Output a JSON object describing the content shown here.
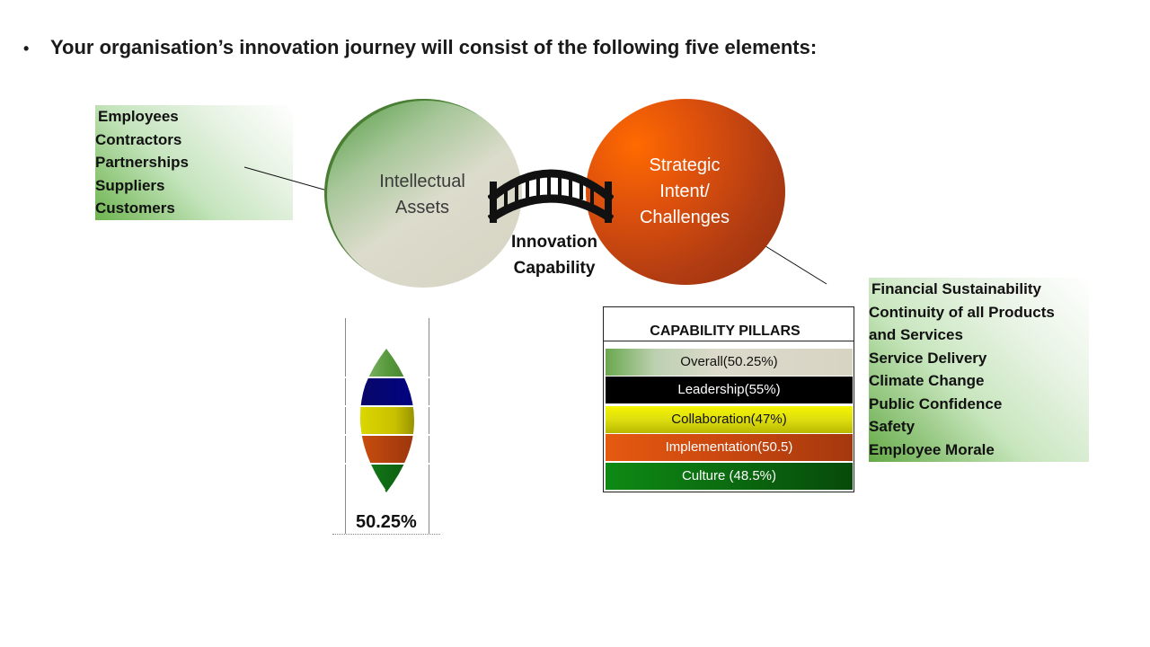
{
  "heading": {
    "bullet": "•",
    "text": "Your organisation’s innovation journey will consist of the following five elements:"
  },
  "left_list": [
    "Employees",
    "Contractors",
    "Partnerships",
    "Suppliers",
    "Customers"
  ],
  "right_list": [
    "Financial Sustainability",
    "Continuity of all Products",
    "and Services",
    "Service Delivery",
    "Climate Change",
    "Public Confidence",
    "Safety",
    "Employee Morale"
  ],
  "circles": {
    "left": {
      "line1": "Intellectual",
      "line2": "Assets"
    },
    "right": {
      "line1": "Strategic",
      "line2": "Intent/",
      "line3": "Challenges"
    }
  },
  "bridge": {
    "line1": "Innovation",
    "line2": "Capability"
  },
  "pillars": {
    "title": "CAPABILITY PILLARS",
    "items": [
      {
        "label": "Overall(50.25%)",
        "color": "#d9d6c8",
        "text_color": "#111111"
      },
      {
        "label": "Leadership(55%)",
        "color": "#000000",
        "text_color": "#ffffff"
      },
      {
        "label": "Collaboration(47%)",
        "color": "#e6e600",
        "text_color": "#111111"
      },
      {
        "label": "Implementation(50.5)",
        "color": "#c9470f",
        "text_color": "#ffffff"
      },
      {
        "label": "Culture (48.5%)",
        "color": "#0b6b10",
        "text_color": "#ffffff"
      }
    ]
  },
  "gauge": {
    "value": "50.25%"
  }
}
